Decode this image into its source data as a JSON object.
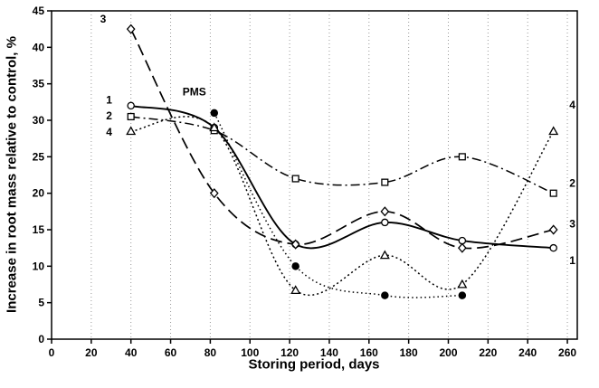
{
  "chart_data": {
    "type": "line",
    "title": "",
    "xlabel": "Storing period, days",
    "ylabel": "Increase in root mass relative to control, %",
    "xlim": [
      0,
      265
    ],
    "ylim": [
      0,
      45
    ],
    "xticks": [
      0,
      20,
      40,
      60,
      80,
      100,
      120,
      140,
      160,
      180,
      200,
      220,
      240,
      260
    ],
    "yticks": [
      0,
      5,
      10,
      15,
      20,
      25,
      30,
      35,
      40,
      45
    ],
    "grid": "vertical-dotted",
    "legend_position": "none",
    "series": [
      {
        "name": "1",
        "line": "solid",
        "marker": "circle-open",
        "x": [
          40,
          82,
          123,
          168,
          207,
          253
        ],
        "y": [
          32,
          29,
          13,
          16,
          13.5,
          12.5
        ]
      },
      {
        "name": "2",
        "line": "dashdot",
        "marker": "square-open",
        "x": [
          40,
          82,
          123,
          168,
          207,
          253
        ],
        "y": [
          30.5,
          28.6,
          22,
          21.5,
          25,
          20
        ]
      },
      {
        "name": "3",
        "line": "longdash",
        "marker": "diamond-open",
        "x": [
          40,
          82,
          123,
          168,
          207,
          253
        ],
        "y": [
          42.5,
          20,
          13,
          17.5,
          12.5,
          15
        ]
      },
      {
        "name": "4",
        "line": "dotted",
        "marker": "triangle-open",
        "x": [
          40,
          82,
          123,
          168,
          207,
          253
        ],
        "y": [
          28.5,
          29,
          6.7,
          11.5,
          7.5,
          28.5
        ]
      },
      {
        "name": "PMS",
        "line": "dotted-fine",
        "marker": "circle-filled",
        "x": [
          82,
          123,
          168,
          207
        ],
        "y": [
          31,
          10,
          6,
          6
        ]
      }
    ],
    "annotations": [
      {
        "text": "PMS",
        "x": 66,
        "y": 33.4,
        "anchor": "start",
        "bold": true
      },
      {
        "text": "3",
        "x": 26,
        "y": 43.4,
        "anchor": "middle",
        "bold": false
      },
      {
        "text": "1",
        "x": 29,
        "y": 32.3,
        "anchor": "middle",
        "bold": false
      },
      {
        "text": "2",
        "x": 29,
        "y": 30.1,
        "anchor": "middle",
        "bold": false
      },
      {
        "text": "4",
        "x": 29,
        "y": 27.9,
        "anchor": "middle",
        "bold": false
      },
      {
        "text": "4",
        "x": 261,
        "y": 31.6,
        "anchor": "start",
        "bold": false
      },
      {
        "text": "2",
        "x": 261,
        "y": 20.9,
        "anchor": "start",
        "bold": false
      },
      {
        "text": "3",
        "x": 261,
        "y": 15.3,
        "anchor": "start",
        "bold": false
      },
      {
        "text": "1",
        "x": 261,
        "y": 10.3,
        "anchor": "start",
        "bold": false
      }
    ],
    "colors": {
      "line": "#000000",
      "grid": "#999999",
      "background": "#ffffff",
      "text": "#000000"
    }
  }
}
